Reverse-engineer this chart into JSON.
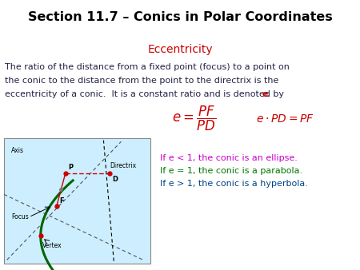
{
  "title": "Section 11.7 – Conics in Polar Coordinates",
  "title_bg": "#a0b4cc",
  "subtitle": "Eccentricity",
  "subtitle_color": "#cc0000",
  "body_text_color": "#222244",
  "formula_color": "#cc0000",
  "line1": "If e < 1, the conic is an ellipse.",
  "line2": "If e = 1, the conic is a parabola.",
  "line3": "If e > 1, the conic is a hyperbola.",
  "line1_color": "#cc00cc",
  "line2_color": "#007700",
  "line3_color": "#004488",
  "diagram_bg": "#cceeff",
  "conic_color": "#006600",
  "axis_label": "Axis",
  "directrix_label": "Directrix",
  "focus_label": "Focus",
  "vertex_label": "Vertex",
  "point_P": "P",
  "point_F": "F",
  "point_D": "D",
  "dot_color": "#cc0000",
  "dashed_color": "#555555",
  "red_color": "#cc0000"
}
